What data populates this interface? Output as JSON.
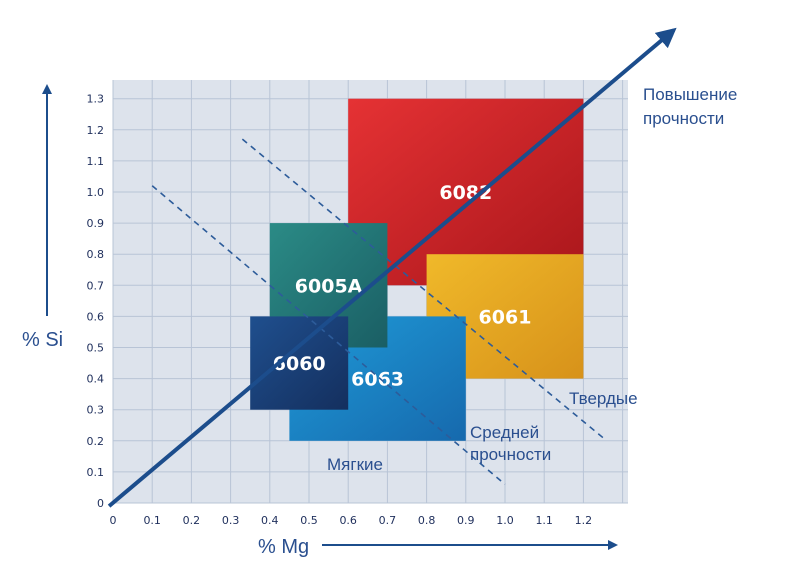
{
  "chart_data": {
    "type": "region-diagram",
    "title": "",
    "xlabel": "% Mg",
    "ylabel": "% Si",
    "xlim": [
      0,
      1.3
    ],
    "ylim": [
      0,
      1.3
    ],
    "x_ticks": [
      "0",
      "0.1",
      "0.2",
      "0.3",
      "0.4",
      "0.5",
      "0.6",
      "0.7",
      "0.8",
      "0.9",
      "1.0",
      "1.1",
      "1.2"
    ],
    "y_ticks": [
      "0",
      "0.1",
      "0.2",
      "0.3",
      "0.4",
      "0.5",
      "0.6",
      "0.7",
      "0.8",
      "0.9",
      "1.0",
      "1.1",
      "1.2",
      "1.3"
    ],
    "grid": true,
    "regions": [
      {
        "name": "6082",
        "mg": [
          0.6,
          1.2
        ],
        "si": [
          0.7,
          1.3
        ],
        "color_from": "#e53234",
        "color_to": "#a9161b"
      },
      {
        "name": "6061",
        "mg": [
          0.8,
          1.2
        ],
        "si": [
          0.4,
          0.8
        ],
        "color_from": "#f0b92a",
        "color_to": "#d7921a"
      },
      {
        "name": "6063",
        "mg": [
          0.45,
          0.9
        ],
        "si": [
          0.2,
          0.6
        ],
        "color_from": "#1f9bd8",
        "color_to": "#1669ad"
      },
      {
        "name": "6005A",
        "mg": [
          0.4,
          0.7
        ],
        "si": [
          0.5,
          0.9
        ],
        "color_from": "#2b8b86",
        "color_to": "#1a5e64"
      },
      {
        "name": "6060",
        "mg": [
          0.35,
          0.6
        ],
        "si": [
          0.3,
          0.6
        ],
        "color_from": "#1f4f8e",
        "color_to": "#142f5e"
      }
    ],
    "boundaries": [
      {
        "from": [
          0.1,
          1.02
        ],
        "to": [
          1.0,
          0.06
        ]
      },
      {
        "from": [
          0.33,
          1.17
        ],
        "to": [
          1.25,
          0.21
        ]
      }
    ],
    "trend_arrow": {
      "from": [
        -0.01,
        -0.01
      ],
      "to": [
        1.43,
        1.52
      ]
    },
    "annotations": {
      "strength_increase": [
        "Повышение",
        "прочности"
      ],
      "hard": "Твердые",
      "medium": [
        "Средней",
        "прочности"
      ],
      "soft": "Мягкие"
    },
    "colors": {
      "plot_background": "#dde3ec",
      "grid": "#b8c4d6",
      "axis_accent": "#1c4d8c",
      "dashed_line": "#2d5c9a"
    }
  }
}
